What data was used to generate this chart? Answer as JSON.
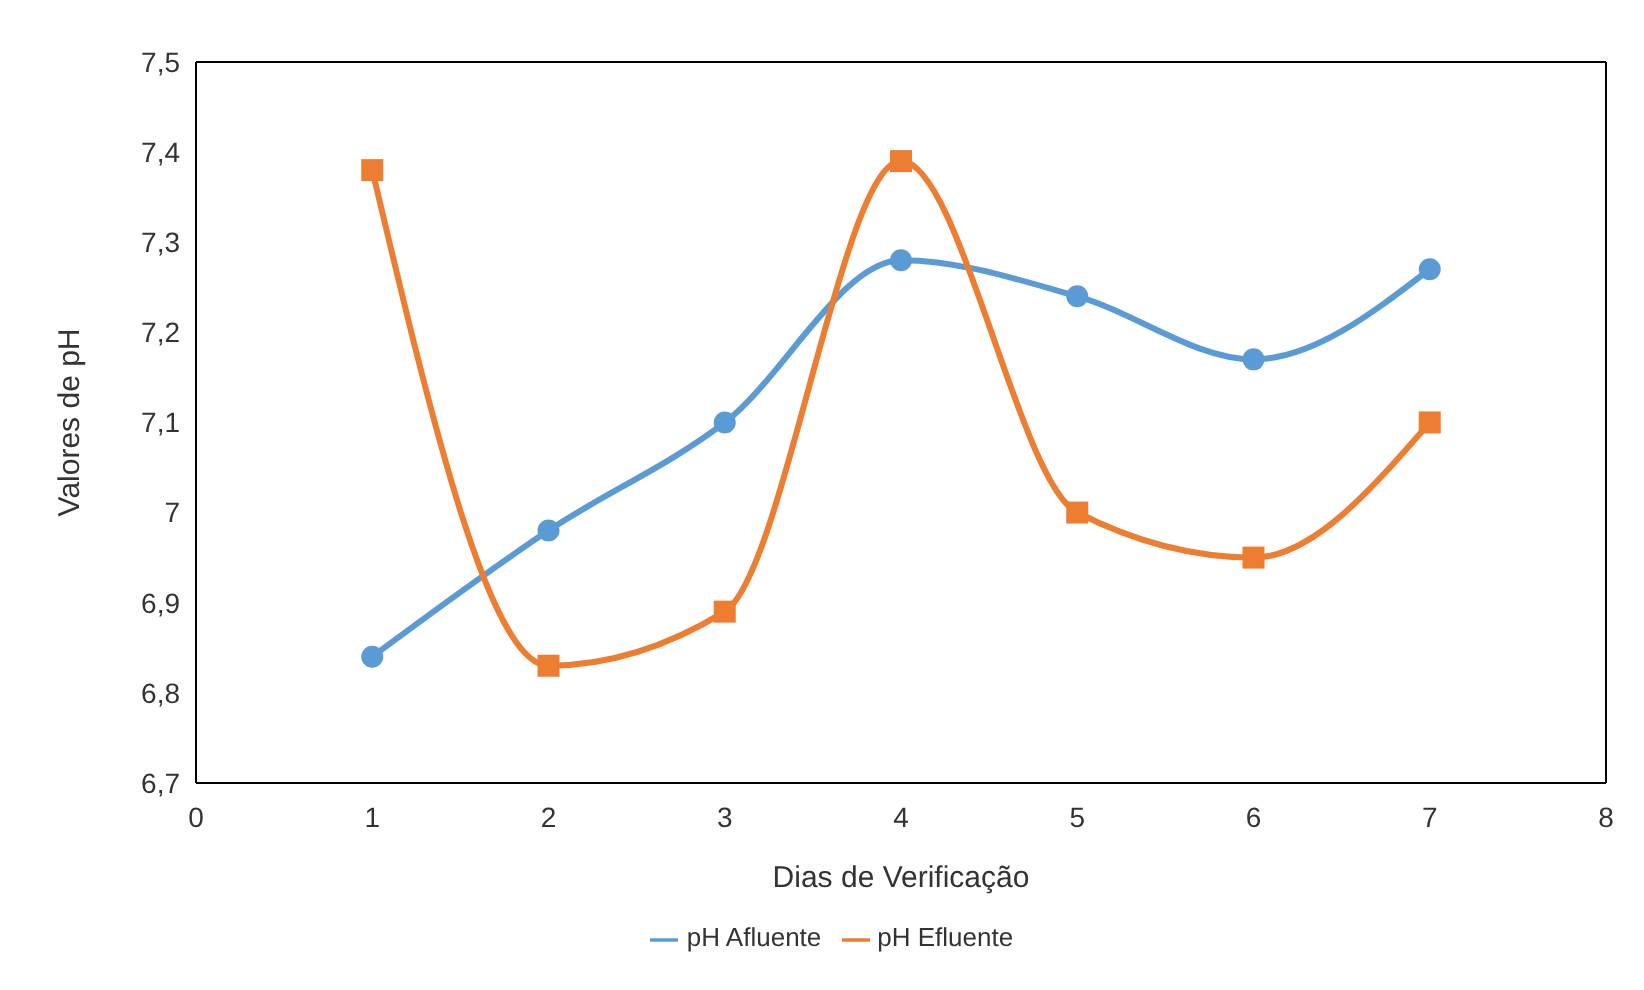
{
  "chart_data": {
    "type": "line",
    "xlabel": "Dias de Verificação",
    "ylabel": "Valores de pH",
    "x": [
      1,
      2,
      3,
      4,
      5,
      6,
      7
    ],
    "series": [
      {
        "name": "pH Afluente",
        "color": "#5b9bd5",
        "marker": "circle",
        "values": [
          6.84,
          6.98,
          7.1,
          7.28,
          7.24,
          7.17,
          7.27
        ]
      },
      {
        "name": "pH Efluente",
        "color": "#ed7d31",
        "marker": "square",
        "values": [
          7.38,
          6.83,
          6.89,
          7.39,
          7.0,
          6.95,
          7.1
        ]
      }
    ],
    "xlim": [
      0,
      8
    ],
    "xticks": [
      0,
      1,
      2,
      3,
      4,
      5,
      6,
      7,
      8
    ],
    "ylim": [
      6.7,
      7.5
    ],
    "yticks": [
      {
        "value": 6.7,
        "label": "6,7"
      },
      {
        "value": 6.8,
        "label": "6,8"
      },
      {
        "value": 6.9,
        "label": "6,9"
      },
      {
        "value": 7,
        "label": "7"
      },
      {
        "value": 7.1,
        "label": "7,1"
      },
      {
        "value": 7.2,
        "label": "7,2"
      },
      {
        "value": 7.3,
        "label": "7,3"
      },
      {
        "value": 7.4,
        "label": "7,4"
      },
      {
        "value": 7.5,
        "label": "7,5"
      }
    ],
    "grid": false,
    "legend": "bottom"
  }
}
